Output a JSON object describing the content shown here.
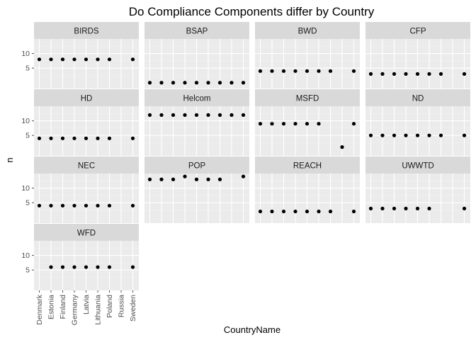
{
  "chart_data": {
    "type": "scatter",
    "title": "Do Compliance Components differ by Country",
    "xlabel": "CountryName",
    "ylabel": "n",
    "categories": [
      "Denmark",
      "Estonia",
      "Finland",
      "Germany",
      "Latvia",
      "Lithuania",
      "Poland",
      "Russia",
      "Sweden"
    ],
    "y_ticks": [
      5,
      10
    ],
    "ylim": [
      -2,
      15
    ],
    "grid": true,
    "facet_order": [
      "BIRDS",
      "BSAP",
      "BWD",
      "CFP",
      "HD",
      "Helcom",
      "MSFD",
      "ND",
      "NEC",
      "POP",
      "REACH",
      "UWWTD",
      "WFD"
    ],
    "facets": [
      {
        "name": "BIRDS",
        "values": [
          8,
          8,
          8,
          8,
          8,
          8,
          8,
          null,
          8
        ]
      },
      {
        "name": "BSAP",
        "values": [
          0,
          0,
          0,
          0,
          0,
          0,
          0,
          0,
          0
        ]
      },
      {
        "name": "BWD",
        "values": [
          4,
          4,
          4,
          4,
          4,
          4,
          4,
          null,
          4
        ]
      },
      {
        "name": "CFP",
        "values": [
          3,
          3,
          3,
          3,
          3,
          3,
          3,
          null,
          3
        ]
      },
      {
        "name": "HD",
        "values": [
          4,
          4,
          4,
          4,
          4,
          4,
          4,
          null,
          4
        ]
      },
      {
        "name": "Helcom",
        "values": [
          12,
          12,
          12,
          12,
          12,
          12,
          12,
          12,
          12
        ]
      },
      {
        "name": "MSFD",
        "values": [
          9,
          9,
          9,
          9,
          9,
          9,
          null,
          1,
          9
        ]
      },
      {
        "name": "ND",
        "values": [
          5,
          5,
          5,
          5,
          5,
          5,
          5,
          null,
          5
        ]
      },
      {
        "name": "NEC",
        "values": [
          4,
          4,
          4,
          4,
          4,
          4,
          4,
          null,
          4
        ]
      },
      {
        "name": "POP",
        "values": [
          13,
          13,
          13,
          14,
          13,
          13,
          13,
          null,
          14
        ]
      },
      {
        "name": "REACH",
        "values": [
          2,
          2,
          2,
          2,
          2,
          2,
          2,
          null,
          2
        ]
      },
      {
        "name": "UWWTD",
        "values": [
          3,
          3,
          3,
          3,
          3,
          3,
          null,
          null,
          3
        ]
      },
      {
        "name": "WFD",
        "values": [
          null,
          6,
          6,
          6,
          6,
          6,
          6,
          null,
          6
        ]
      }
    ],
    "colors": {
      "panel_bg": "#ebebeb",
      "strip_bg": "#d9d9d9",
      "grid_major": "#ffffff",
      "grid_minor": "#f2f2f2",
      "point": "#000000",
      "tick": "#4d4d4d"
    }
  }
}
